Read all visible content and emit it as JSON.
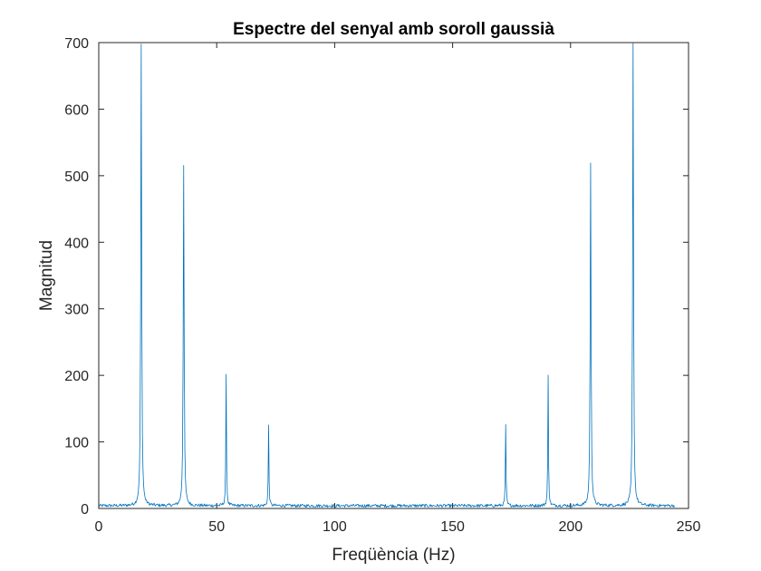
{
  "chart_data": {
    "type": "line",
    "title": "Espectre del senyal amb soroll gaussià",
    "xlabel": "Freqüència (Hz)",
    "ylabel": "Magnitud",
    "xlim": [
      0,
      250
    ],
    "ylim": [
      0,
      700
    ],
    "xticks": [
      0,
      50,
      100,
      150,
      200,
      250
    ],
    "yticks": [
      0,
      100,
      200,
      300,
      400,
      500,
      600,
      700
    ],
    "xtick_labels": [
      "0",
      "50",
      "100",
      "150",
      "200",
      "250"
    ],
    "ytick_labels": [
      "0",
      "100",
      "200",
      "300",
      "400",
      "500",
      "600",
      "700"
    ],
    "grid": false,
    "box": true,
    "series": [
      {
        "color": "#0072BD",
        "x_range": [
          0,
          244
        ],
        "noise_floor": 5,
        "peaks": [
          {
            "x": 18,
            "y": 693
          },
          {
            "x": 36,
            "y": 513
          },
          {
            "x": 54,
            "y": 195
          },
          {
            "x": 72,
            "y": 120
          },
          {
            "x": 172.5,
            "y": 120
          },
          {
            "x": 190.5,
            "y": 195
          },
          {
            "x": 208.5,
            "y": 513
          },
          {
            "x": 226.5,
            "y": 693
          }
        ]
      }
    ]
  }
}
